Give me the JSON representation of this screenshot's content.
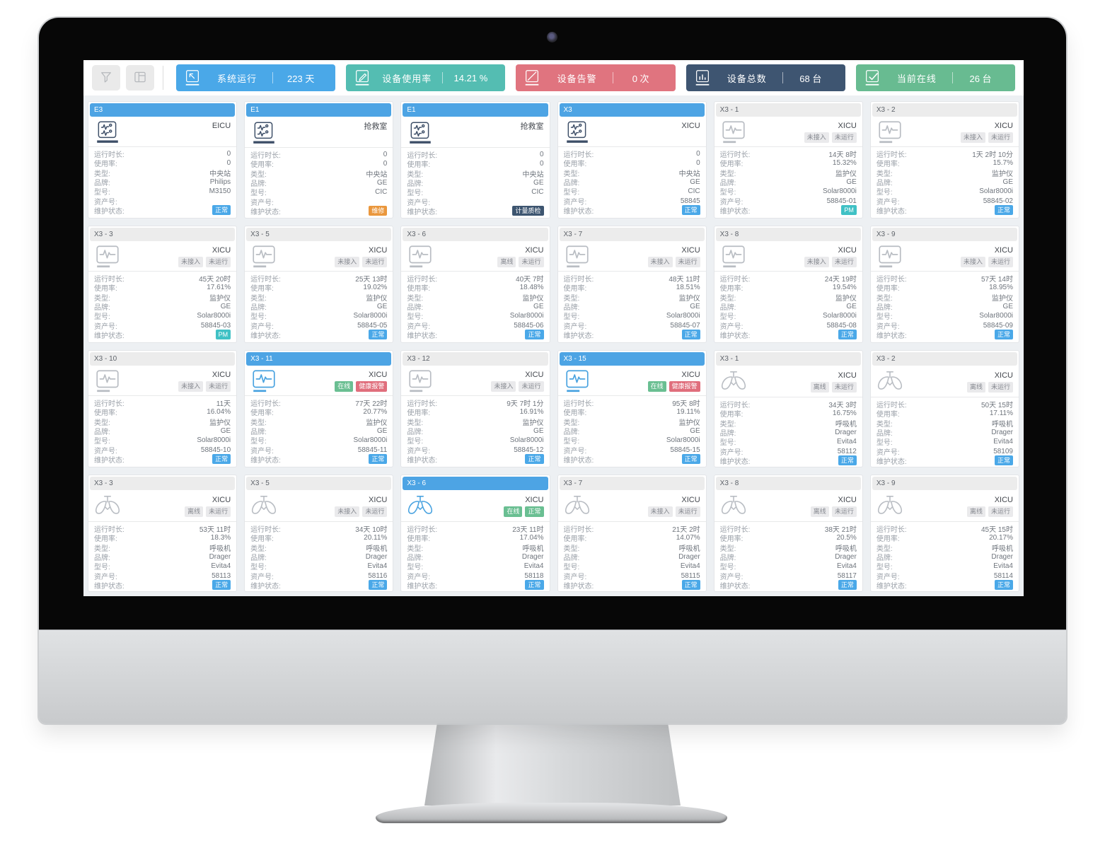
{
  "toolbar": {
    "buttons": [
      {
        "icon": "filter-icon"
      },
      {
        "icon": "layout-icon"
      }
    ],
    "stats": [
      {
        "label": "系统运行",
        "value": "223 天",
        "color": "#4aa8e8",
        "icon": "cursor-square-icon"
      },
      {
        "label": "设备使用率",
        "value": "14.21 %",
        "color": "#54bdb2",
        "icon": "edit-square-icon"
      },
      {
        "label": "设备告警",
        "value": "0 次",
        "color": "#e0747f",
        "icon": "slash-square-icon"
      },
      {
        "label": "设备总数",
        "value": "68 台",
        "color": "#3e5571",
        "icon": "bar-chart-icon"
      },
      {
        "label": "当前在线",
        "value": "26 台",
        "color": "#68bb91",
        "icon": "check-square-icon"
      }
    ]
  },
  "field_labels": {
    "runtime": "运行时长:",
    "usage": "使用率:",
    "type": "类型:",
    "brand": "品牌:",
    "model": "型号:",
    "asset": "资产号:",
    "maintenance": "维护状态:"
  },
  "badge_styles": {
    "grey": {
      "bg": "#eaeaec",
      "fg": "#85888f"
    },
    "green": {
      "bg": "#6abf92",
      "fg": "#ffffff"
    },
    "red": {
      "bg": "#e06e7c",
      "fg": "#ffffff"
    },
    "blue": {
      "bg": "#4aa8e8",
      "fg": "#ffffff"
    },
    "orange": {
      "bg": "#ea973d",
      "fg": "#ffffff"
    },
    "navy": {
      "bg": "#3d5570",
      "fg": "#ffffff"
    },
    "teal": {
      "bg": "#40c1c5",
      "fg": "#ffffff"
    }
  },
  "icon_colors": {
    "navy": "#3e4f68",
    "grey": "#b9bdc3",
    "blue": "#4aa3e0"
  },
  "cards": [
    {
      "id": "E3",
      "header": "blue",
      "location": "EICU",
      "statuses": [],
      "icon": "central-station-icon",
      "icon_color": "navy",
      "fields": {
        "runtime": "0",
        "usage": "0",
        "type": "中央站",
        "brand": "Philips",
        "model": "M3150",
        "asset": ""
      },
      "maint": {
        "text": "正常",
        "style": "blue"
      }
    },
    {
      "id": "E1",
      "header": "blue",
      "location": "抢救室",
      "statuses": [],
      "icon": "central-station-icon",
      "icon_color": "navy",
      "fields": {
        "runtime": "0",
        "usage": "0",
        "type": "中央站",
        "brand": "GE",
        "model": "CIC",
        "asset": ""
      },
      "maint": {
        "text": "维修",
        "style": "orange"
      }
    },
    {
      "id": "E1",
      "header": "blue",
      "location": "抢救室",
      "statuses": [],
      "icon": "central-station-icon",
      "icon_color": "navy",
      "fields": {
        "runtime": "0",
        "usage": "0",
        "type": "中央站",
        "brand": "GE",
        "model": "CIC",
        "asset": ""
      },
      "maint": {
        "text": "计量质检",
        "style": "navy"
      }
    },
    {
      "id": "X3",
      "header": "blue",
      "location": "XICU",
      "statuses": [],
      "icon": "central-station-icon",
      "icon_color": "navy",
      "fields": {
        "runtime": "0",
        "usage": "0",
        "type": "中央站",
        "brand": "GE",
        "model": "CIC",
        "asset": "58845"
      },
      "maint": {
        "text": "正常",
        "style": "blue"
      }
    },
    {
      "id": "X3 - 1",
      "header": "grey",
      "location": "XICU",
      "statuses": [
        {
          "text": "未接入",
          "style": "grey"
        },
        {
          "text": "未运行",
          "style": "grey"
        }
      ],
      "icon": "monitor-icon",
      "icon_color": "grey",
      "fields": {
        "runtime": "14天 8时",
        "usage": "15.32%",
        "type": "监护仪",
        "brand": "GE",
        "model": "Solar8000i",
        "asset": "58845-01"
      },
      "maint": {
        "text": "PM",
        "style": "teal"
      }
    },
    {
      "id": "X3 - 2",
      "header": "grey",
      "location": "XICU",
      "statuses": [
        {
          "text": "未接入",
          "style": "grey"
        },
        {
          "text": "未运行",
          "style": "grey"
        }
      ],
      "icon": "monitor-icon",
      "icon_color": "grey",
      "fields": {
        "runtime": "1天 2时 10分",
        "usage": "15.7%",
        "type": "监护仪",
        "brand": "GE",
        "model": "Solar8000i",
        "asset": "58845-02"
      },
      "maint": {
        "text": "正常",
        "style": "blue"
      }
    },
    {
      "id": "X3 - 3",
      "header": "grey",
      "location": "XICU",
      "statuses": [
        {
          "text": "未接入",
          "style": "grey"
        },
        {
          "text": "未运行",
          "style": "grey"
        }
      ],
      "icon": "monitor-icon",
      "icon_color": "grey",
      "fields": {
        "runtime": "45天 20时",
        "usage": "17.61%",
        "type": "监护仪",
        "brand": "GE",
        "model": "Solar8000i",
        "asset": "58845-03"
      },
      "maint": {
        "text": "PM",
        "style": "teal"
      }
    },
    {
      "id": "X3 - 5",
      "header": "grey",
      "location": "XICU",
      "statuses": [
        {
          "text": "未接入",
          "style": "grey"
        },
        {
          "text": "未运行",
          "style": "grey"
        }
      ],
      "icon": "monitor-icon",
      "icon_color": "grey",
      "fields": {
        "runtime": "25天 13时",
        "usage": "19.02%",
        "type": "监护仪",
        "brand": "GE",
        "model": "Solar8000i",
        "asset": "58845-05"
      },
      "maint": {
        "text": "正常",
        "style": "blue"
      }
    },
    {
      "id": "X3 - 6",
      "header": "grey",
      "location": "XICU",
      "statuses": [
        {
          "text": "离线",
          "style": "grey"
        },
        {
          "text": "未运行",
          "style": "grey"
        }
      ],
      "icon": "monitor-icon",
      "icon_color": "grey",
      "fields": {
        "runtime": "40天 7时",
        "usage": "18.48%",
        "type": "监护仪",
        "brand": "GE",
        "model": "Solar8000i",
        "asset": "58845-06"
      },
      "maint": {
        "text": "正常",
        "style": "blue"
      }
    },
    {
      "id": "X3 - 7",
      "header": "grey",
      "location": "XICU",
      "statuses": [
        {
          "text": "未接入",
          "style": "grey"
        },
        {
          "text": "未运行",
          "style": "grey"
        }
      ],
      "icon": "monitor-icon",
      "icon_color": "grey",
      "fields": {
        "runtime": "48天 11时",
        "usage": "18.51%",
        "type": "监护仪",
        "brand": "GE",
        "model": "Solar8000i",
        "asset": "58845-07"
      },
      "maint": {
        "text": "正常",
        "style": "blue"
      }
    },
    {
      "id": "X3 - 8",
      "header": "grey",
      "location": "XICU",
      "statuses": [
        {
          "text": "未接入",
          "style": "grey"
        },
        {
          "text": "未运行",
          "style": "grey"
        }
      ],
      "icon": "monitor-icon",
      "icon_color": "grey",
      "fields": {
        "runtime": "24天 19时",
        "usage": "19.54%",
        "type": "监护仪",
        "brand": "GE",
        "model": "Solar8000i",
        "asset": "58845-08"
      },
      "maint": {
        "text": "正常",
        "style": "blue"
      }
    },
    {
      "id": "X3 - 9",
      "header": "grey",
      "location": "XICU",
      "statuses": [
        {
          "text": "未接入",
          "style": "grey"
        },
        {
          "text": "未运行",
          "style": "grey"
        }
      ],
      "icon": "monitor-icon",
      "icon_color": "grey",
      "fields": {
        "runtime": "57天 14时",
        "usage": "18.95%",
        "type": "监护仪",
        "brand": "GE",
        "model": "Solar8000i",
        "asset": "58845-09"
      },
      "maint": {
        "text": "正常",
        "style": "blue"
      }
    },
    {
      "id": "X3 - 10",
      "header": "grey",
      "location": "XICU",
      "statuses": [
        {
          "text": "未接入",
          "style": "grey"
        },
        {
          "text": "未运行",
          "style": "grey"
        }
      ],
      "icon": "monitor-icon",
      "icon_color": "grey",
      "fields": {
        "runtime": "11天",
        "usage": "16.04%",
        "type": "监护仪",
        "brand": "GE",
        "model": "Solar8000i",
        "asset": "58845-10"
      },
      "maint": {
        "text": "正常",
        "style": "blue"
      }
    },
    {
      "id": "X3 - 11",
      "header": "blue",
      "location": "XICU",
      "statuses": [
        {
          "text": "在线",
          "style": "green"
        },
        {
          "text": "健康报警",
          "style": "red"
        }
      ],
      "icon": "monitor-icon",
      "icon_color": "blue",
      "fields": {
        "runtime": "77天 22时",
        "usage": "20.77%",
        "type": "监护仪",
        "brand": "GE",
        "model": "Solar8000i",
        "asset": "58845-11"
      },
      "maint": {
        "text": "正常",
        "style": "blue"
      }
    },
    {
      "id": "X3 - 12",
      "header": "grey",
      "location": "XICU",
      "statuses": [
        {
          "text": "未接入",
          "style": "grey"
        },
        {
          "text": "未运行",
          "style": "grey"
        }
      ],
      "icon": "monitor-icon",
      "icon_color": "grey",
      "fields": {
        "runtime": "9天 7时 1分",
        "usage": "16.91%",
        "type": "监护仪",
        "brand": "GE",
        "model": "Solar8000i",
        "asset": "58845-12"
      },
      "maint": {
        "text": "正常",
        "style": "blue"
      }
    },
    {
      "id": "X3 - 15",
      "header": "blue",
      "location": "XICU",
      "statuses": [
        {
          "text": "在线",
          "style": "green"
        },
        {
          "text": "健康报警",
          "style": "red"
        }
      ],
      "icon": "monitor-icon",
      "icon_color": "blue",
      "fields": {
        "runtime": "95天 8时",
        "usage": "19.11%",
        "type": "监护仪",
        "brand": "GE",
        "model": "Solar8000i",
        "asset": "58845-15"
      },
      "maint": {
        "text": "正常",
        "style": "blue"
      }
    },
    {
      "id": "X3 - 1",
      "header": "grey",
      "location": "XICU",
      "statuses": [
        {
          "text": "离线",
          "style": "grey"
        },
        {
          "text": "未运行",
          "style": "grey"
        }
      ],
      "icon": "lungs-icon",
      "icon_color": "grey",
      "fields": {
        "runtime": "34天 3时",
        "usage": "16.75%",
        "type": "呼吸机",
        "brand": "Drager",
        "model": "Evita4",
        "asset": "58112"
      },
      "maint": {
        "text": "正常",
        "style": "blue"
      }
    },
    {
      "id": "X3 - 2",
      "header": "grey",
      "location": "XICU",
      "statuses": [
        {
          "text": "离线",
          "style": "grey"
        },
        {
          "text": "未运行",
          "style": "grey"
        }
      ],
      "icon": "lungs-icon",
      "icon_color": "grey",
      "fields": {
        "runtime": "50天 15时",
        "usage": "17.11%",
        "type": "呼吸机",
        "brand": "Drager",
        "model": "Evita4",
        "asset": "58109"
      },
      "maint": {
        "text": "正常",
        "style": "blue"
      }
    },
    {
      "id": "X3 - 3",
      "header": "grey",
      "location": "XICU",
      "statuses": [
        {
          "text": "离线",
          "style": "grey"
        },
        {
          "text": "未运行",
          "style": "grey"
        }
      ],
      "icon": "lungs-icon",
      "icon_color": "grey",
      "fields": {
        "runtime": "53天 11时",
        "usage": "18.3%",
        "type": "呼吸机",
        "brand": "Drager",
        "model": "Evita4",
        "asset": "58113"
      },
      "maint": {
        "text": "正常",
        "style": "blue"
      }
    },
    {
      "id": "X3 - 5",
      "header": "grey",
      "location": "XICU",
      "statuses": [
        {
          "text": "未接入",
          "style": "grey"
        },
        {
          "text": "未运行",
          "style": "grey"
        }
      ],
      "icon": "lungs-icon",
      "icon_color": "grey",
      "fields": {
        "runtime": "34天 10时",
        "usage": "20.11%",
        "type": "呼吸机",
        "brand": "Drager",
        "model": "Evita4",
        "asset": "58116"
      },
      "maint": {
        "text": "正常",
        "style": "blue"
      }
    },
    {
      "id": "X3 - 6",
      "header": "blue",
      "location": "XICU",
      "statuses": [
        {
          "text": "在线",
          "style": "green"
        },
        {
          "text": "正常",
          "style": "green"
        }
      ],
      "icon": "lungs-icon",
      "icon_color": "blue",
      "fields": {
        "runtime": "23天 11时",
        "usage": "17.04%",
        "type": "呼吸机",
        "brand": "Drager",
        "model": "Evita4",
        "asset": "58118"
      },
      "maint": {
        "text": "正常",
        "style": "blue"
      }
    },
    {
      "id": "X3 - 7",
      "header": "grey",
      "location": "XICU",
      "statuses": [
        {
          "text": "未接入",
          "style": "grey"
        },
        {
          "text": "未运行",
          "style": "grey"
        }
      ],
      "icon": "lungs-icon",
      "icon_color": "grey",
      "fields": {
        "runtime": "21天 2时",
        "usage": "14.07%",
        "type": "呼吸机",
        "brand": "Drager",
        "model": "Evita4",
        "asset": "58115"
      },
      "maint": {
        "text": "正常",
        "style": "blue"
      }
    },
    {
      "id": "X3 - 8",
      "header": "grey",
      "location": "XICU",
      "statuses": [
        {
          "text": "离线",
          "style": "grey"
        },
        {
          "text": "未运行",
          "style": "grey"
        }
      ],
      "icon": "lungs-icon",
      "icon_color": "grey",
      "fields": {
        "runtime": "38天 21时",
        "usage": "20.5%",
        "type": "呼吸机",
        "brand": "Drager",
        "model": "Evita4",
        "asset": "58117"
      },
      "maint": {
        "text": "正常",
        "style": "blue"
      }
    },
    {
      "id": "X3 - 9",
      "header": "grey",
      "location": "XICU",
      "statuses": [
        {
          "text": "离线",
          "style": "grey"
        },
        {
          "text": "未运行",
          "style": "grey"
        }
      ],
      "icon": "lungs-icon",
      "icon_color": "grey",
      "fields": {
        "runtime": "45天 15时",
        "usage": "20.17%",
        "type": "呼吸机",
        "brand": "Drager",
        "model": "Evita4",
        "asset": "58114"
      },
      "maint": {
        "text": "正常",
        "style": "blue"
      }
    }
  ]
}
